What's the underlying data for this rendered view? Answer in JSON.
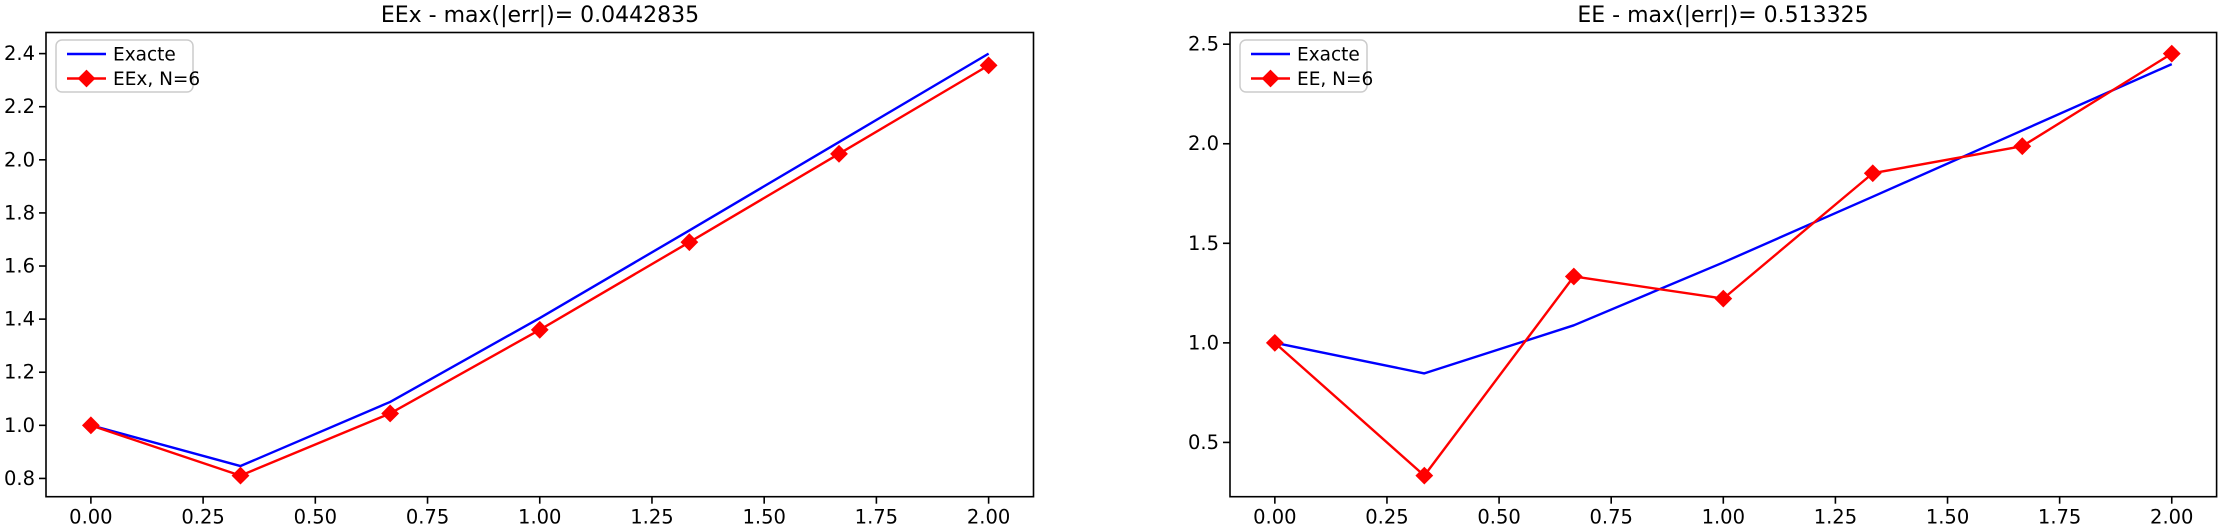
{
  "figure": {
    "background": "#ffffff"
  },
  "chart_data": [
    {
      "type": "line",
      "title": "EEx - max(|err|)= 0.0442835",
      "x": [
        0,
        0.3333,
        0.6667,
        1.0,
        1.3333,
        1.6667,
        2.0
      ],
      "series": [
        {
          "name": "Exacte",
          "color": "#0000ff",
          "marker": "none",
          "values": [
            1.0,
            0.8467,
            1.0881,
            1.404,
            1.7341,
            2.0669,
            2.4
          ]
        },
        {
          "name": "EEx, N=6",
          "color": "#ff0000",
          "marker": "diamond",
          "values": [
            1.0,
            0.8107,
            1.0447,
            1.3598,
            1.6898,
            2.0226,
            2.3557
          ]
        }
      ],
      "xlim": [
        -0.1,
        2.1
      ],
      "ylim": [
        0.7312,
        2.4795
      ],
      "xticks": [
        0,
        0.25,
        0.5,
        0.75,
        1.0,
        1.25,
        1.5,
        1.75,
        2.0
      ],
      "xtick_labels": [
        "0.00",
        "0.25",
        "0.50",
        "0.75",
        "1.00",
        "1.25",
        "1.50",
        "1.75",
        "2.00"
      ],
      "yticks": [
        0.8,
        1.0,
        1.2,
        1.4,
        1.6,
        1.8,
        2.0,
        2.2,
        2.4
      ],
      "ytick_labels": [
        "0.8",
        "1.0",
        "1.2",
        "1.4",
        "1.6",
        "1.8",
        "2.0",
        "2.2",
        "2.4"
      ],
      "legend": {
        "position": "upper-left",
        "entries": [
          "Exacte",
          "EEx, N=6"
        ]
      },
      "grid": false
    },
    {
      "type": "line",
      "title": "EE - max(|err|)= 0.513325",
      "x": [
        0,
        0.3333,
        0.6667,
        1.0,
        1.3333,
        1.6667,
        2.0
      ],
      "series": [
        {
          "name": "Exacte",
          "color": "#0000ff",
          "marker": "none",
          "values": [
            1.0,
            0.8467,
            1.0881,
            1.404,
            1.7341,
            2.0669,
            2.4
          ]
        },
        {
          "name": "EE, N=6",
          "color": "#ff0000",
          "marker": "diamond",
          "values": [
            1.0,
            0.3333,
            1.3333,
            1.2222,
            1.8519,
            1.9877,
            2.4527
          ]
        }
      ],
      "xlim": [
        -0.1,
        2.1
      ],
      "ylim": [
        0.2274,
        2.5587
      ],
      "xticks": [
        0,
        0.25,
        0.5,
        0.75,
        1.0,
        1.25,
        1.5,
        1.75,
        2.0
      ],
      "xtick_labels": [
        "0.00",
        "0.25",
        "0.50",
        "0.75",
        "1.00",
        "1.25",
        "1.50",
        "1.75",
        "2.00"
      ],
      "yticks": [
        0.5,
        1.0,
        1.5,
        2.0,
        2.5
      ],
      "ytick_labels": [
        "0.5",
        "1.0",
        "1.5",
        "2.0",
        "2.5"
      ],
      "legend": {
        "position": "upper-left",
        "entries": [
          "Exacte",
          "EE, N=6"
        ]
      },
      "grid": false
    }
  ]
}
